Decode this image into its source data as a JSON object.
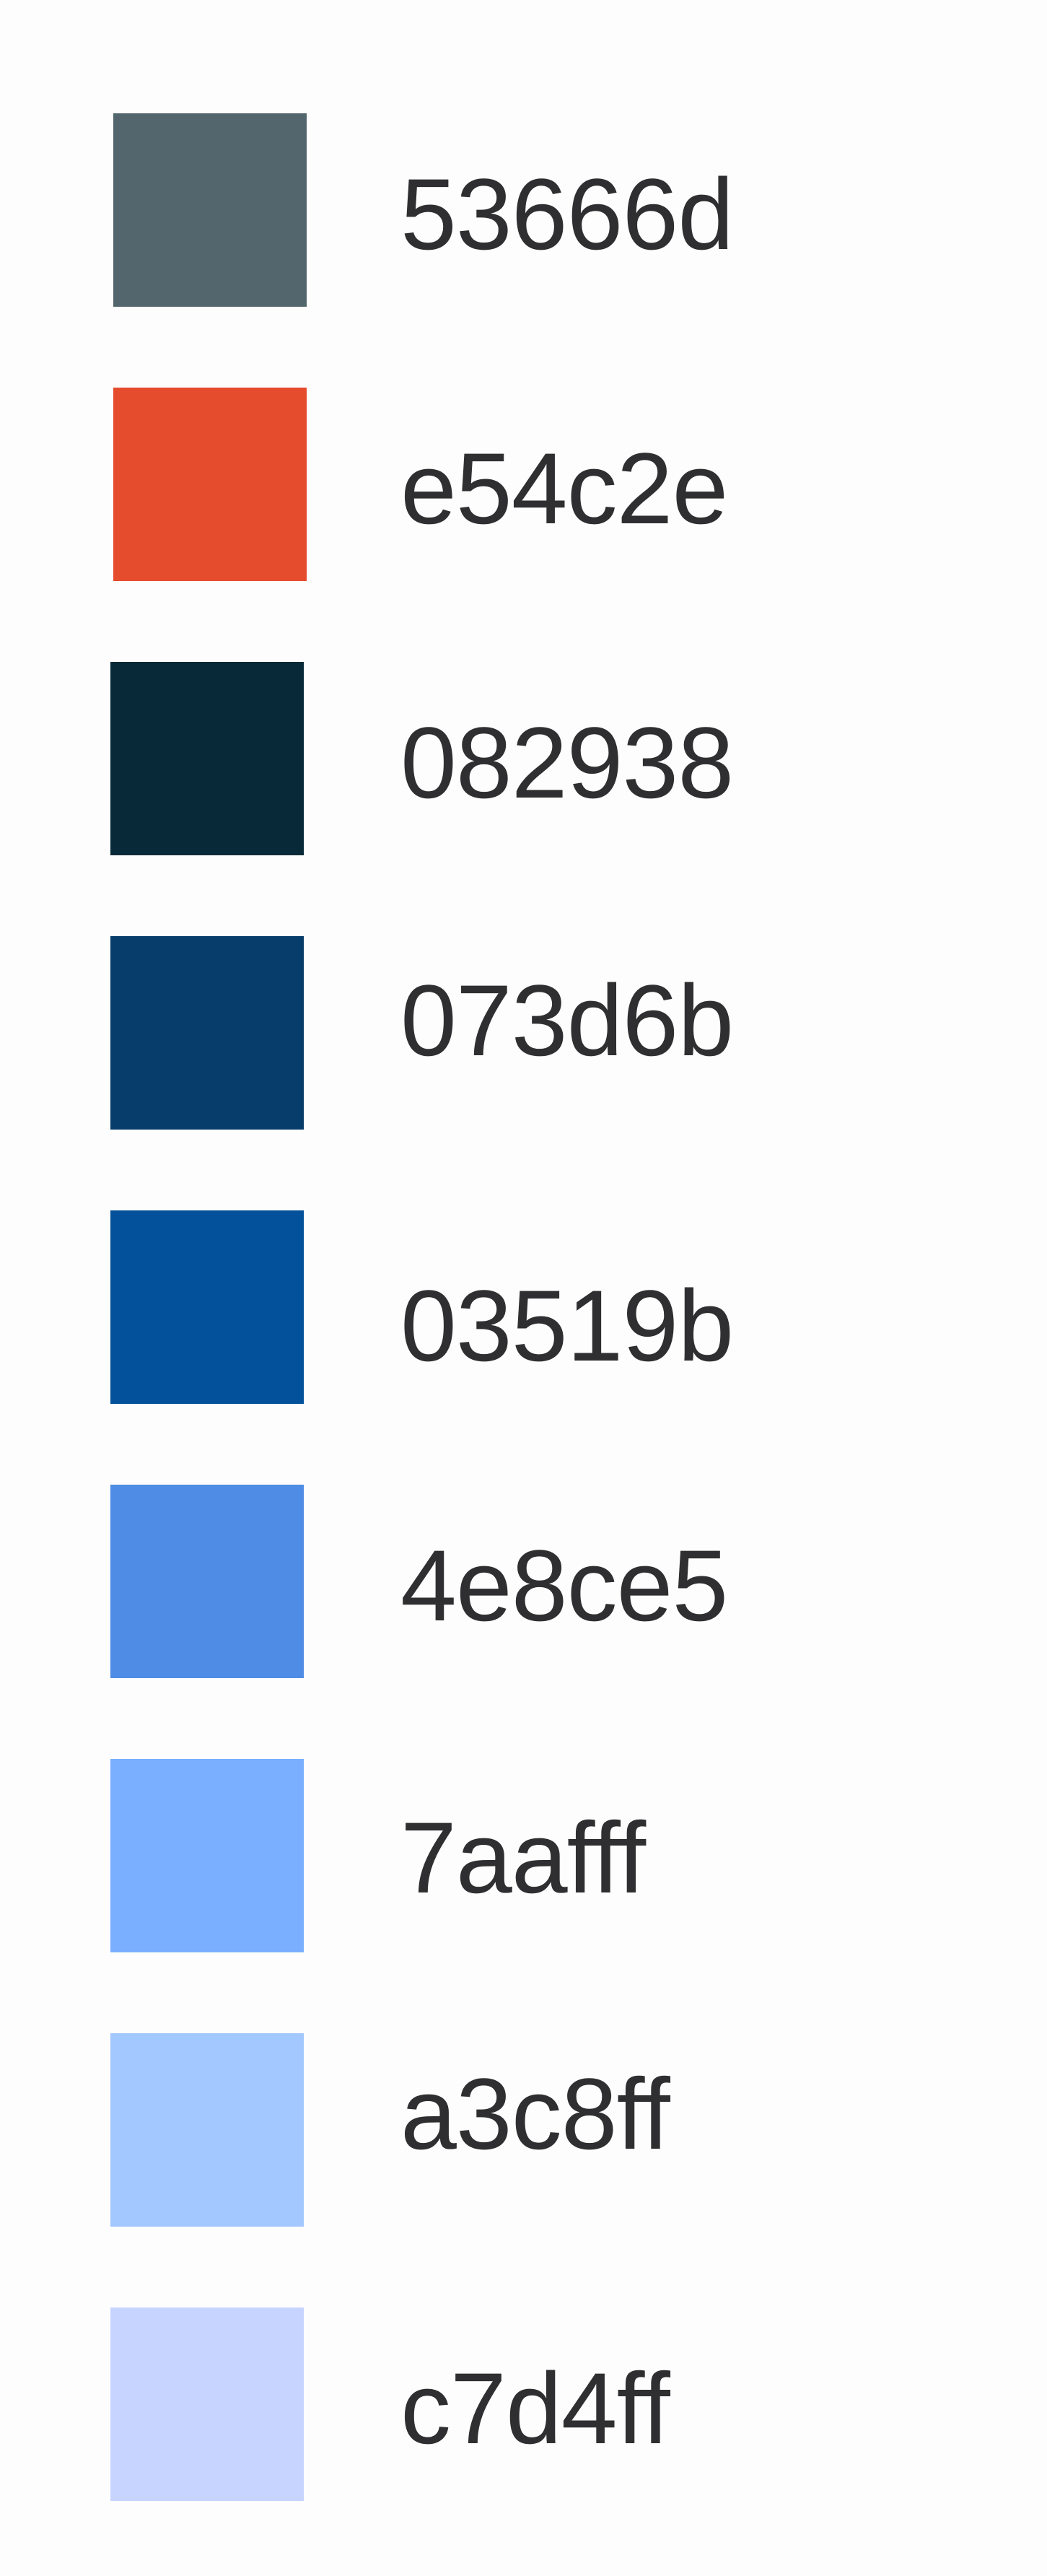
{
  "swatches": [
    {
      "label": "53666d",
      "color": "#53666d"
    },
    {
      "label": "e54c2e",
      "color": "#e54c2e"
    },
    {
      "label": "082938",
      "color": "#082938"
    },
    {
      "label": "073d6b",
      "color": "#073d6b"
    },
    {
      "label": "03519b",
      "color": "#03519b"
    },
    {
      "label": "4e8ce5",
      "color": "#4e8ce5"
    },
    {
      "label": "7aafff",
      "color": "#7aafff"
    },
    {
      "label": "a3c8ff",
      "color": "#a3c8ff"
    },
    {
      "label": "c7d4ff",
      "color": "#c7d4ff"
    }
  ]
}
